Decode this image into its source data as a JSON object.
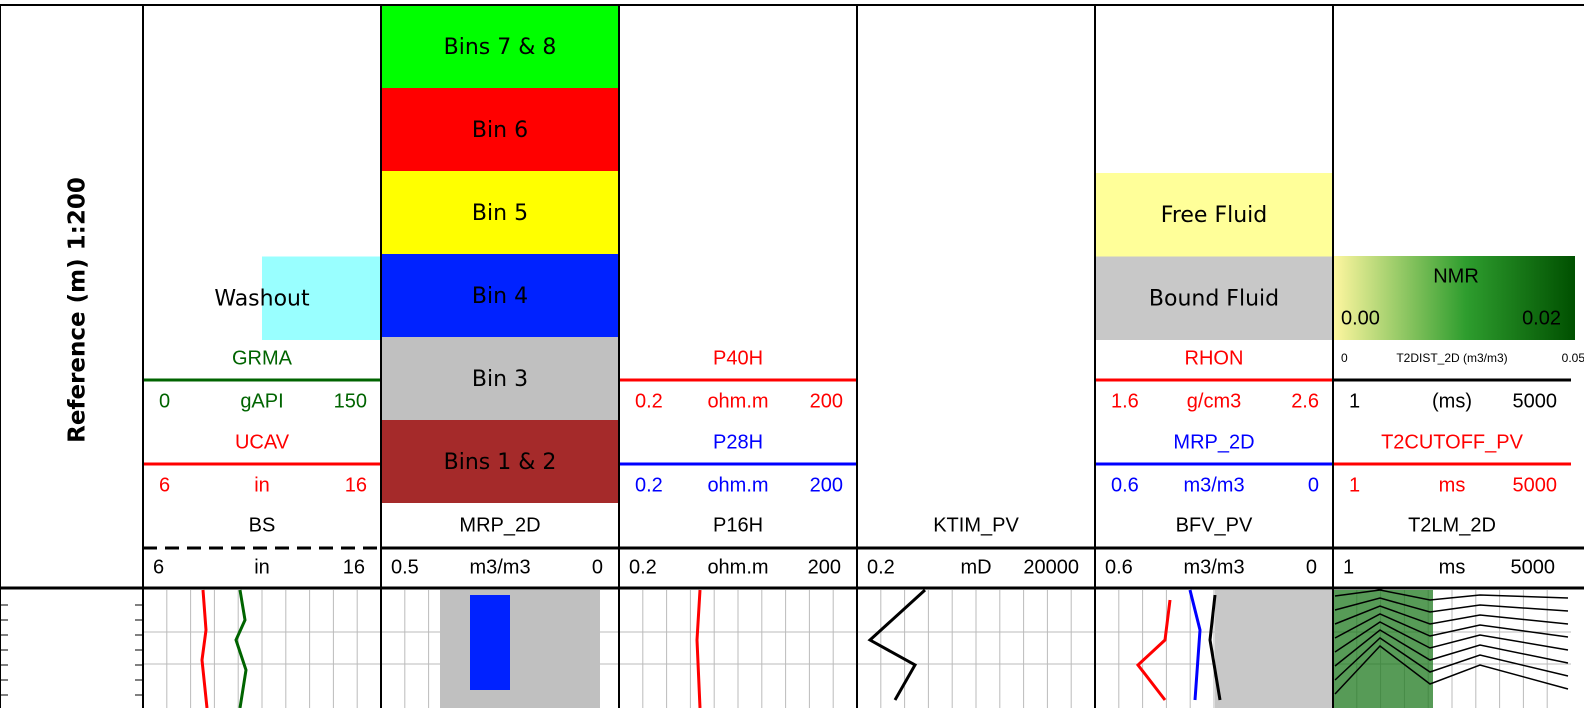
{
  "scale_label": "Reference (m) 1:200",
  "tracks": [
    {
      "fills": [
        {
          "label": "Washout",
          "color": "#99ffff",
          "half": true
        }
      ],
      "curves": [
        {
          "name": "GRMA",
          "color": "#006400",
          "left": "0",
          "unit": "gAPI",
          "right": "150"
        },
        {
          "name": "UCAV",
          "color": "#ff0000",
          "left": "6",
          "unit": "in",
          "right": "16"
        }
      ],
      "main": {
        "name": "BS",
        "left": "6",
        "unit": "in",
        "right": "16",
        "dashed": true
      }
    },
    {
      "bins": [
        {
          "label": "Bins 7 & 8",
          "color": "#00ff00"
        },
        {
          "label": "Bin 6",
          "color": "#ff0000"
        },
        {
          "label": "Bin 5",
          "color": "#ffff00"
        },
        {
          "label": "Bin 4",
          "color": "#0022ff"
        },
        {
          "label": "Bin 3",
          "color": "#c0c0c0"
        },
        {
          "label": "Bins 1 & 2",
          "color": "#a52a2a"
        }
      ],
      "main": {
        "name": "MRP_2D",
        "left": "0.5",
        "unit": "m3/m3",
        "right": "0"
      }
    },
    {
      "curves": [
        {
          "name": "P40H",
          "color": "#ff0000",
          "left": "0.2",
          "unit": "ohm.m",
          "right": "200"
        },
        {
          "name": "P28H",
          "color": "#0000ff",
          "left": "0.2",
          "unit": "ohm.m",
          "right": "200"
        }
      ],
      "main": {
        "name": "P16H",
        "left": "0.2",
        "unit": "ohm.m",
        "right": "200"
      }
    },
    {
      "main": {
        "name": "KTIM_PV",
        "left": "0.2",
        "unit": "mD",
        "right": "20000"
      }
    },
    {
      "fills": [
        {
          "label": "Free Fluid",
          "color": "#ffff99"
        },
        {
          "label": "Bound Fluid",
          "color": "#c8c8c8"
        }
      ],
      "curves": [
        {
          "name": "RHON",
          "color": "#ff0000",
          "left": "1.6",
          "unit": "g/cm3",
          "right": "2.6"
        },
        {
          "name": "MRP_2D",
          "color": "#0000ff",
          "left": "0.6",
          "unit": "m3/m3",
          "right": "0"
        }
      ],
      "main": {
        "name": "BFV_PV",
        "left": "0.6",
        "unit": "m3/m3",
        "right": "0"
      }
    },
    {
      "legend": {
        "title": "NMR",
        "min": "0.00",
        "max": "0.02"
      },
      "curves": [
        {
          "name": "T2DIST_2D (m3/m3)",
          "name_left": "0",
          "name_right": "0.05",
          "small": true,
          "color": "#000000",
          "left": "1",
          "unit": "(ms)",
          "right": "5000"
        },
        {
          "name": "T2CUTOFF_PV",
          "color": "#ff0000",
          "left": "1",
          "unit": "ms",
          "right": "5000"
        }
      ],
      "main": {
        "name": "T2LM_2D",
        "left": "1",
        "unit": "ms",
        "right": "5000"
      }
    }
  ]
}
